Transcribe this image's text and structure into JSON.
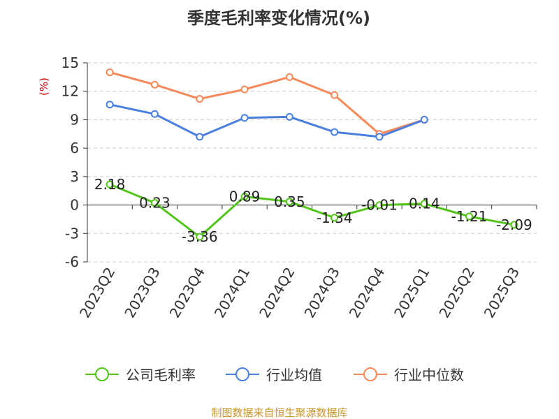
{
  "chart_data": {
    "type": "line",
    "title": "季度毛利率变化情况(%)",
    "ylabel": "(%)",
    "xlabel": "",
    "categories": [
      "2023Q2",
      "2023Q3",
      "2023Q4",
      "2024Q1",
      "2024Q2",
      "2024Q3",
      "2024Q4",
      "2025Q1",
      "2025Q2",
      "2025Q3"
    ],
    "ylim": [
      -6,
      15
    ],
    "yticks": [
      15,
      12,
      9,
      6,
      3,
      0,
      -3,
      -6
    ],
    "grid": true,
    "legend_position": "bottom",
    "series": [
      {
        "name": "公司毛利率",
        "color": "#52c41a",
        "values": [
          2.18,
          0.23,
          -3.36,
          0.89,
          0.35,
          -1.34,
          -0.01,
          0.14,
          -1.21,
          -2.09
        ],
        "labels": [
          "2.18",
          "0.23",
          "-3.36",
          "0.89",
          "0.35",
          "-1.34",
          "-0.01",
          "0.14",
          "-1.21",
          "-2.09"
        ]
      },
      {
        "name": "行业均值",
        "color": "#4a7fe0",
        "values": [
          10.6,
          9.6,
          7.2,
          9.2,
          9.3,
          7.7,
          7.2,
          9.0,
          null,
          null
        ]
      },
      {
        "name": "行业中位数",
        "color": "#f5895a",
        "values": [
          14.0,
          12.7,
          11.2,
          12.2,
          13.5,
          11.6,
          7.5,
          9.0,
          null,
          null
        ]
      }
    ]
  },
  "source": {
    "text": "制图数据来自恒生聚源数据库",
    "color": "#c8962a"
  },
  "ylabel_color": "#cc0000"
}
